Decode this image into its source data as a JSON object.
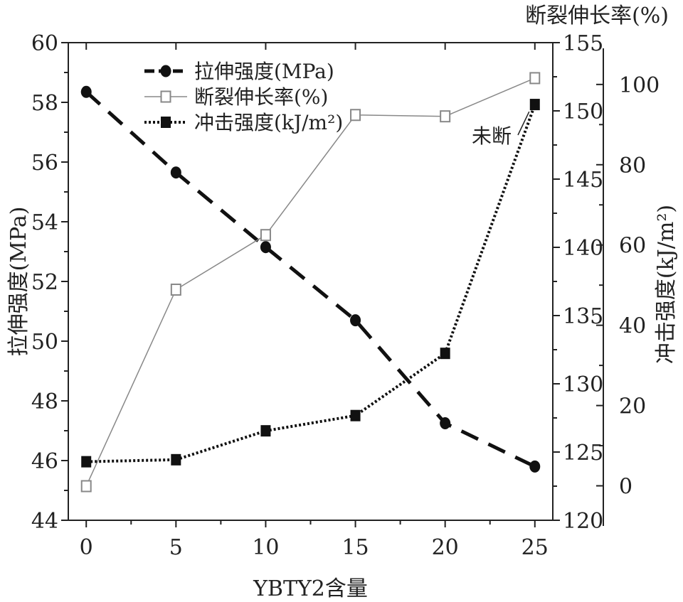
{
  "chart_data": {
    "type": "line",
    "x_label": "YBTY2含量",
    "x_ticks": [
      0,
      5,
      10,
      15,
      20,
      25
    ],
    "x_range": [
      -1,
      26
    ],
    "x": [
      0,
      5,
      10,
      15,
      20,
      25
    ],
    "left_axis": {
      "label": "拉伸强度(MPa)",
      "range": [
        44,
        60
      ],
      "ticks": [
        44,
        46,
        48,
        50,
        52,
        54,
        56,
        58,
        60
      ]
    },
    "right_axis_1": {
      "label": "断裂伸长率(%)",
      "range": [
        120,
        155
      ],
      "ticks": [
        120,
        125,
        130,
        135,
        140,
        145,
        150,
        155
      ]
    },
    "right_axis_2": {
      "label": "冲击强度(kJ/m²)",
      "range": [
        -10,
        109
      ],
      "ticks": [
        0,
        20,
        40,
        60,
        80,
        100
      ]
    },
    "series": [
      {
        "name": "拉伸强度(MPa)",
        "axis": "left",
        "marker": "filled-circle",
        "line": "dashed",
        "color": "#111111",
        "values": [
          58.35,
          55.65,
          53.15,
          50.7,
          47.25,
          45.8
        ]
      },
      {
        "name": "断裂伸长率(%)",
        "axis": "right1",
        "marker": "open-square",
        "line": "solid-thin",
        "color": "#888888",
        "values": [
          122.5,
          136.9,
          140.9,
          149.7,
          149.6,
          152.4
        ]
      },
      {
        "name": "冲击强度(kJ/m²)",
        "axis": "right2",
        "marker": "filled-square",
        "line": "dotted",
        "color": "#111111",
        "values": [
          6,
          6.5,
          13.7,
          17.5,
          33,
          95
        ]
      }
    ],
    "annotations": [
      {
        "text": "未断",
        "x": 25,
        "series": "冲击强度(kJ/m²)"
      }
    ],
    "legend_position": "top-left",
    "grid": false
  }
}
